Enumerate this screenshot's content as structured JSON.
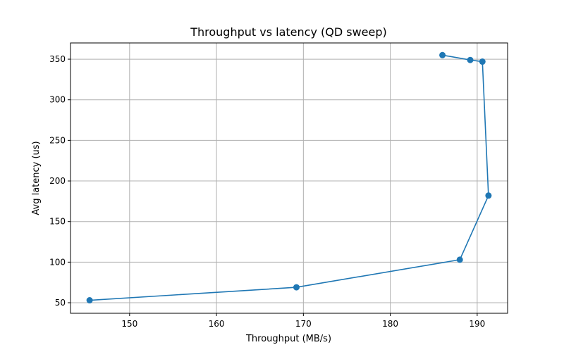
{
  "chart_data": {
    "type": "line",
    "title": "Throughput vs latency (QD sweep)",
    "xlabel": "Throughput (MB/s)",
    "ylabel": "Avg latency (us)",
    "xlim": [
      143.2,
      193.5
    ],
    "ylim": [
      37,
      370
    ],
    "xticks": [
      150,
      160,
      170,
      180,
      190
    ],
    "yticks": [
      50,
      100,
      150,
      200,
      250,
      300,
      350
    ],
    "grid": true,
    "series": [
      {
        "marker": "circle",
        "color": "#1f77b4",
        "points": [
          {
            "x": 145.4,
            "y": 53
          },
          {
            "x": 169.2,
            "y": 69
          },
          {
            "x": 188.0,
            "y": 103
          },
          {
            "x": 191.3,
            "y": 182
          },
          {
            "x": 190.6,
            "y": 347
          },
          {
            "x": 189.2,
            "y": 349
          },
          {
            "x": 186.0,
            "y": 355
          }
        ]
      }
    ]
  }
}
